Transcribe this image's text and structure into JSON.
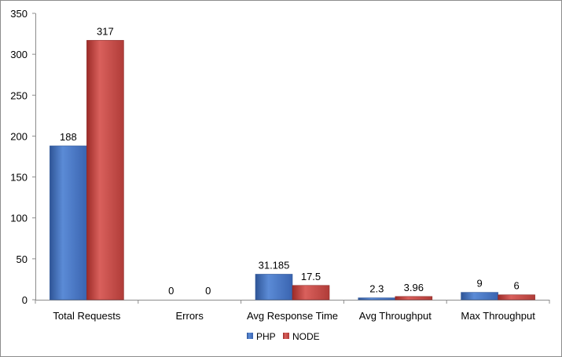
{
  "chart_data": {
    "type": "bar",
    "title": "",
    "xlabel": "",
    "ylabel": "",
    "ylim": [
      0,
      350
    ],
    "yticks": [
      0,
      50,
      100,
      150,
      200,
      250,
      300,
      350
    ],
    "grid": false,
    "legend_position": "bottom",
    "categories": [
      "Total Requests",
      "Errors",
      "Avg Response Time",
      "Avg Throughput",
      "Max Throughput"
    ],
    "series": [
      {
        "name": "PHP",
        "color": "#4472c4",
        "values": [
          188,
          0,
          31.185,
          2.3,
          9
        ],
        "labels": [
          "188",
          "0",
          "31.185",
          "2.3",
          "9"
        ]
      },
      {
        "name": "NODE",
        "color": "#c0504d",
        "values": [
          317,
          0,
          17.5,
          3.96,
          6
        ],
        "labels": [
          "317",
          "0",
          "17.5",
          "3.96",
          "6"
        ]
      }
    ]
  }
}
